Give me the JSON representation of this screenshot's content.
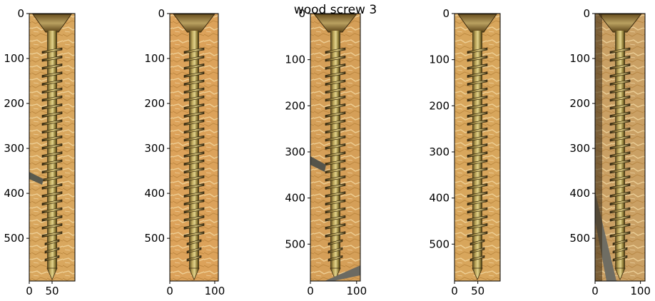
{
  "figure": {
    "title": "wood screw 3",
    "panels": [
      {
        "id": "panel-1",
        "yticks": [
          0,
          100,
          200,
          300,
          400,
          500
        ],
        "xticks": [
          0,
          50
        ],
        "xlim": [
          0,
          100
        ],
        "ylim": [
          0,
          595
        ],
        "colors": {
          "wood": "#d9a75e",
          "screw": "#8a7a3a"
        }
      },
      {
        "id": "panel-2",
        "yticks": [
          0,
          100,
          200,
          300,
          400,
          500
        ],
        "xticks": [
          0,
          100
        ],
        "xlim": [
          0,
          108
        ],
        "ylim": [
          0,
          595
        ],
        "colors": {
          "wood": "#dca25a",
          "screw": "#8c7c3c"
        }
      },
      {
        "id": "panel-3",
        "yticks": [
          0,
          100,
          200,
          300,
          400,
          500
        ],
        "xticks": [
          0,
          100
        ],
        "xlim": [
          0,
          108
        ],
        "ylim": [
          0,
          580
        ],
        "colors": {
          "wood": "#d59f58",
          "screw": "#877738"
        }
      },
      {
        "id": "panel-4",
        "yticks": [
          0,
          100,
          200,
          300,
          400,
          500
        ],
        "xticks": [
          0,
          50
        ],
        "xlim": [
          0,
          98
        ],
        "ylim": [
          0,
          580
        ],
        "colors": {
          "wood": "#d8a65c",
          "screw": "#8a7b3b"
        }
      },
      {
        "id": "panel-5",
        "yticks": [
          0,
          100,
          200,
          300,
          400,
          500
        ],
        "xticks": [
          0,
          100
        ],
        "xlim": [
          0,
          110
        ],
        "ylim": [
          0,
          595
        ],
        "colors": {
          "wood": "#caa064",
          "screw": "#857636"
        }
      }
    ]
  }
}
